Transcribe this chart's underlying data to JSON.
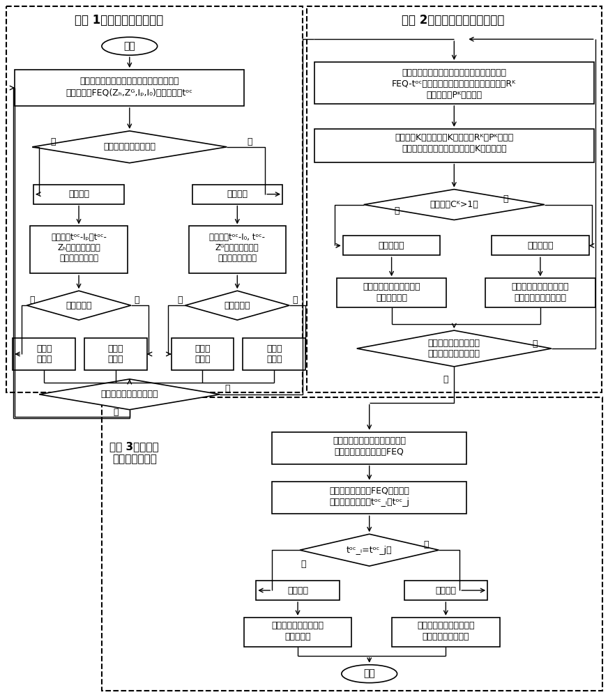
{
  "fig_w": 8.72,
  "fig_h": 10.0,
  "dpi": 100,
  "title1": "步骤 1：识别线路保护类型",
  "title2": "步骤 2：计算保护动作时间特性",
  "title3": "步骤 3：评估电\n压暂降持续时间",
  "s1_start": "开始",
  "s1_box1_l1": "基于历史监测数据计算某断路器切除的所有",
  "s1_box1_l2": "故障电气量FEQ(Zₕ,Zᴳ,Iₚ,I₀)和动作时间tᵒᶜ",
  "s1_dia1": "故障为相间还是接地？",
  "s1_phase": "相间故障",
  "s1_ground": "接地故障",
  "s1_box2a_l1": "分别计算tᵒᶜ-Iₚ和tᵒᶜ-",
  "s1_box2a_l2": "Zₕ的样本区间均值",
  "s1_box2a_l3": "标准差并比较大小",
  "s1_box2b_l1": "分别计算tᵒᶜ-I₀, tᵒᶜ-",
  "s1_box2b_l2": "Zᴳ的样本区间均值",
  "s1_box2b_l3": "标准差并比较大小",
  "s1_dia2a": "前者较小？",
  "s1_dia2b": "前者较小？",
  "s1_box3a": "相间电\n流保护",
  "s1_box3b": "相间距\n离保护",
  "s1_box3c": "零序电\n流保护",
  "s1_box3d": "接地距\n离保护",
  "s1_dia3_l1": "全线路断路器识别完毕？",
  "s2_box1_l1": "基于某断路器所配置的两种保护类型所切除的",
  "s2_box1_l2": "FEQ-tᵒᶜ样本，采用改进马氏距离分别计算其Rᴷ",
  "s2_box1_l3": "候选参数和Pᴷ候选参数",
  "s2_box2_l1": "不断增加K值，用不同K值对应的Rᴷ和Pᴷ参数进",
  "s2_box2_l2": "行聚类，找到最佳聚类数和最优K值进行聚类",
  "s2_dia1": "聚类簇数Cᴷ>1？",
  "s2_left": "反时限保护",
  "s2_right": "阶段式保护",
  "s2_bl_l1": "基于最小二乘法计算保护",
  "s2_bl_l2": "动作特性方程",
  "s2_br_l1": "基于聚类中心和聚类边界",
  "s2_br_l2": "计算保护动作特性方程",
  "s2_dia2_l1": "全线路的相间保护和接",
  "s2_dia2_l2": "地保护特性计算完毕？",
  "s3_box1_l1": "根据故障类型、故障所在线路保",
  "s3_box1_l2": "护类型确定所需计算的FEQ",
  "s3_box2_l1": "计算保护安装处的FEQ得到线路",
  "s3_box2_l2": "两端保护动作时间tᵒᶜ_ᵢ和tᵒᶜ_j",
  "s3_dia": "tᵒᶜ_ᵢ=tᵒᶜ_j？",
  "s3_rect": "矩形暂降",
  "s3_multi": "多级暂降",
  "s3_bl_l1": "电压暂降持续时间为保",
  "s3_bl_l2": "护动作时间",
  "s3_br_l1": "基于电压损失量法计算等",
  "s3_br_l2": "效电压暂降持续时间",
  "s3_end": "结束",
  "yes": "是",
  "no": "否"
}
